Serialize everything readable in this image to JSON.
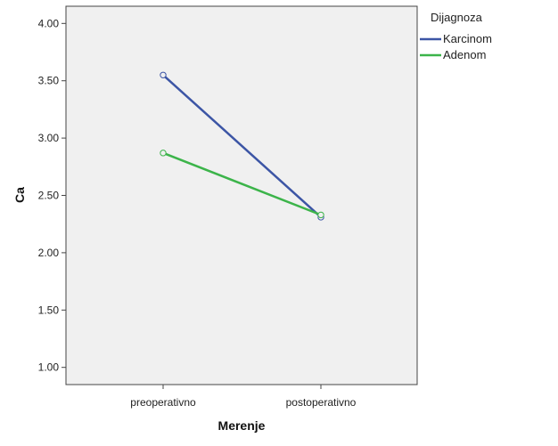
{
  "chart_data": {
    "type": "line",
    "title": "",
    "xlabel": "Merenje",
    "ylabel": "Ca",
    "categories": [
      "preoperativno",
      "postoperativno"
    ],
    "ylim": [
      0.85,
      4.15
    ],
    "yticks": [
      "1.00",
      "1.50",
      "2.00",
      "2.50",
      "3.00",
      "3.50",
      "4.00"
    ],
    "legend": {
      "title": "Dijagnoza",
      "position": "top-right, outside plot"
    },
    "grid": false,
    "series": [
      {
        "name": "Karcinom",
        "color": "#3c55a5",
        "values": [
          3.55,
          2.31
        ]
      },
      {
        "name": "Adenom",
        "color": "#3cb44a",
        "values": [
          2.87,
          2.33
        ]
      }
    ]
  },
  "plot_background": "#f0f0f0"
}
